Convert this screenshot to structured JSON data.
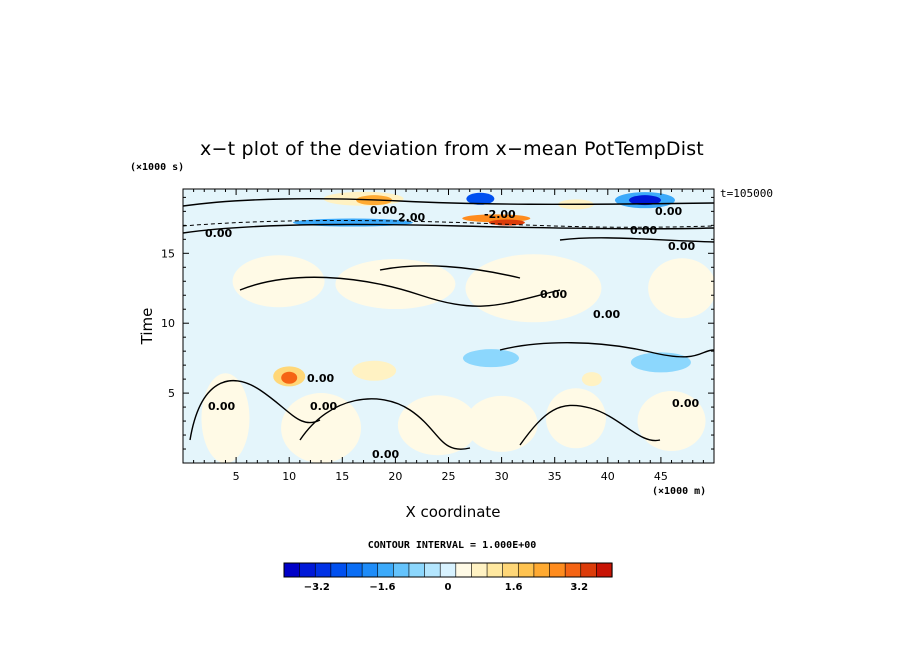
{
  "chart_data": {
    "type": "heatmap",
    "title": "x−t plot of the deviation from x−mean PotTempDist",
    "xlabel": "X coordinate",
    "ylabel": "Time",
    "x_unit_note": "(×1000 m)",
    "y_unit_note": "(×1000 s)",
    "time_stamp": "t=105000",
    "xlim": [
      0,
      50
    ],
    "ylim": [
      0,
      19.6
    ],
    "x_ticks": [
      5,
      10,
      15,
      20,
      25,
      30,
      35,
      40,
      45
    ],
    "y_ticks": [
      5,
      10,
      15
    ],
    "contour_interval_text": "CONTOUR INTERVAL = 1.000E+00",
    "colorbar": {
      "min": -4.0,
      "max": 4.0,
      "step": 0.4,
      "tick_labels": [
        "−3.2",
        "−1.6",
        "0",
        "1.6",
        "3.2"
      ],
      "tick_values": [
        -3.2,
        -1.6,
        0,
        1.6,
        3.2
      ],
      "colors": [
        "#0000c8",
        "#0019d8",
        "#0032e6",
        "#0050f0",
        "#0a6ef5",
        "#1e8cf8",
        "#3caafa",
        "#64c3fc",
        "#8cd7fd",
        "#b4e6fe",
        "#d8f2ff",
        "#fffae6",
        "#fff2c3",
        "#ffe8a0",
        "#ffd778",
        "#ffc350",
        "#ffaa32",
        "#ff8c1e",
        "#f56414",
        "#dc3c0a",
        "#c81405"
      ]
    },
    "contour_labels": [
      "0.00",
      "2.00",
      "-2.00"
    ],
    "features": [
      {
        "x": 18,
        "t": 18.7,
        "value": 2.2
      },
      {
        "x": 30,
        "t": 17.3,
        "value": 4.0
      },
      {
        "x": 10,
        "t": 6.1,
        "value": 3.2
      },
      {
        "x": 28,
        "t": 18.8,
        "value": -2.8
      },
      {
        "x": 43.5,
        "t": 18.8,
        "value": -3.4
      },
      {
        "x": 17,
        "t": 17.1,
        "value": -1.6
      }
    ]
  }
}
